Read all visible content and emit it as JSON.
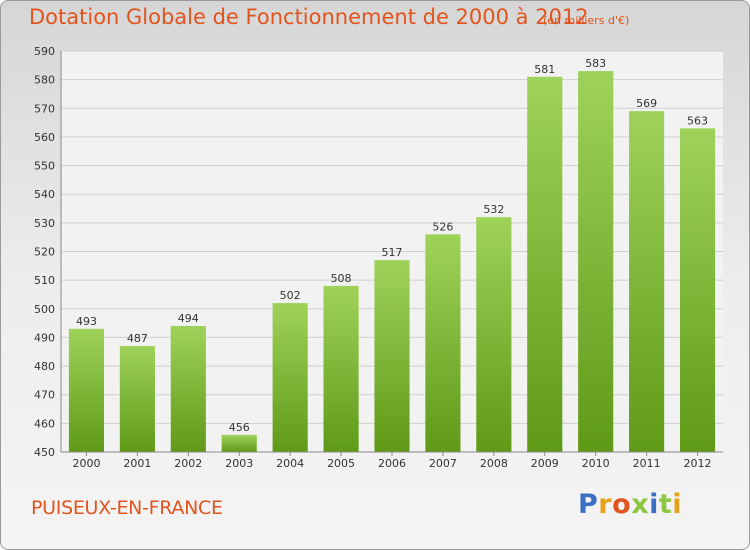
{
  "header": {
    "title": "Dotation Globale de Fonctionnement de 2000 à 2012",
    "subtitle": "(en milliers d'€)"
  },
  "footer": {
    "commune": "PUISEUX-EN-FRANCE",
    "logo": "Proxiti"
  },
  "colors": {
    "title": "#e2541d",
    "bar_light": "#9fd25a",
    "bar_dark": "#5f9a17",
    "logo_letters": [
      "#3b6fc4",
      "#e8a21a",
      "#e2541d",
      "#8dc63f",
      "#3b6fc4",
      "#8dc63f",
      "#e8a21a"
    ]
  },
  "chart_data": {
    "type": "bar",
    "title": "Dotation Globale de Fonctionnement de 2000 à 2012",
    "categories": [
      "2000",
      "2001",
      "2002",
      "2003",
      "2004",
      "2005",
      "2006",
      "2007",
      "2008",
      "2009",
      "2010",
      "2011",
      "2012"
    ],
    "values": [
      493,
      487,
      494,
      456,
      502,
      508,
      517,
      526,
      532,
      581,
      583,
      569,
      563
    ],
    "ylim": [
      450,
      590
    ],
    "yticks": [
      450,
      460,
      470,
      480,
      490,
      500,
      510,
      520,
      530,
      540,
      550,
      560,
      570,
      580,
      590
    ],
    "grid": true,
    "xlabel": "",
    "ylabel": ""
  }
}
